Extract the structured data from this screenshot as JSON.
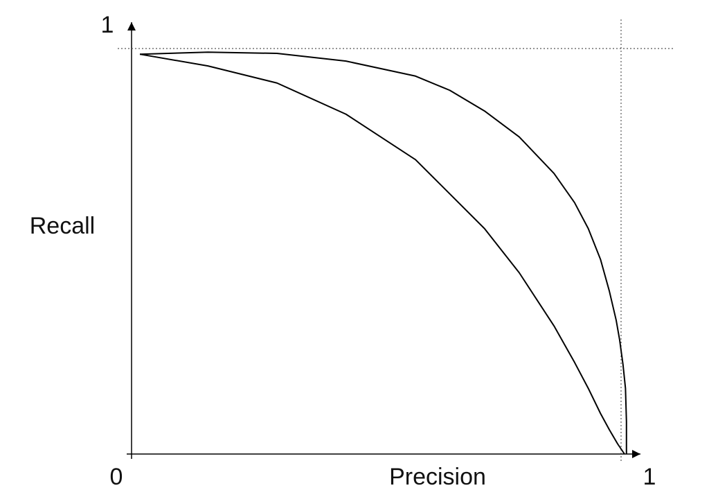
{
  "chart_data": {
    "type": "line",
    "x_label": "Precision",
    "y_label": "Recall",
    "xlim": [
      0,
      1
    ],
    "ylim": [
      0,
      1
    ],
    "xticks": [
      0,
      1
    ],
    "yticks": [
      1
    ],
    "grid": true,
    "series": [
      {
        "color": "#000000",
        "x": [
          0.017,
          0.156,
          0.297,
          0.438,
          0.58,
          0.721,
          0.792,
          0.863,
          0.905,
          0.933,
          0.958,
          0.976,
          0.993,
          1.007
        ],
        "values": [
          0.986,
          0.957,
          0.915,
          0.838,
          0.726,
          0.556,
          0.447,
          0.316,
          0.226,
          0.162,
          0.1,
          0.06,
          0.025,
          0
        ]
      },
      {
        "color": "#000000",
        "x": [
          0.017,
          0.156,
          0.297,
          0.438,
          0.58,
          0.65,
          0.721,
          0.792,
          0.863,
          0.905,
          0.933,
          0.958,
          0.976,
          0.99,
          0.997,
          1.004,
          1.009,
          1.011,
          1.011
        ],
        "values": [
          0.986,
          0.991,
          0.988,
          0.969,
          0.932,
          0.897,
          0.846,
          0.782,
          0.692,
          0.62,
          0.556,
          0.48,
          0.402,
          0.33,
          0.282,
          0.22,
          0.162,
          0.08,
          0
        ]
      }
    ]
  }
}
